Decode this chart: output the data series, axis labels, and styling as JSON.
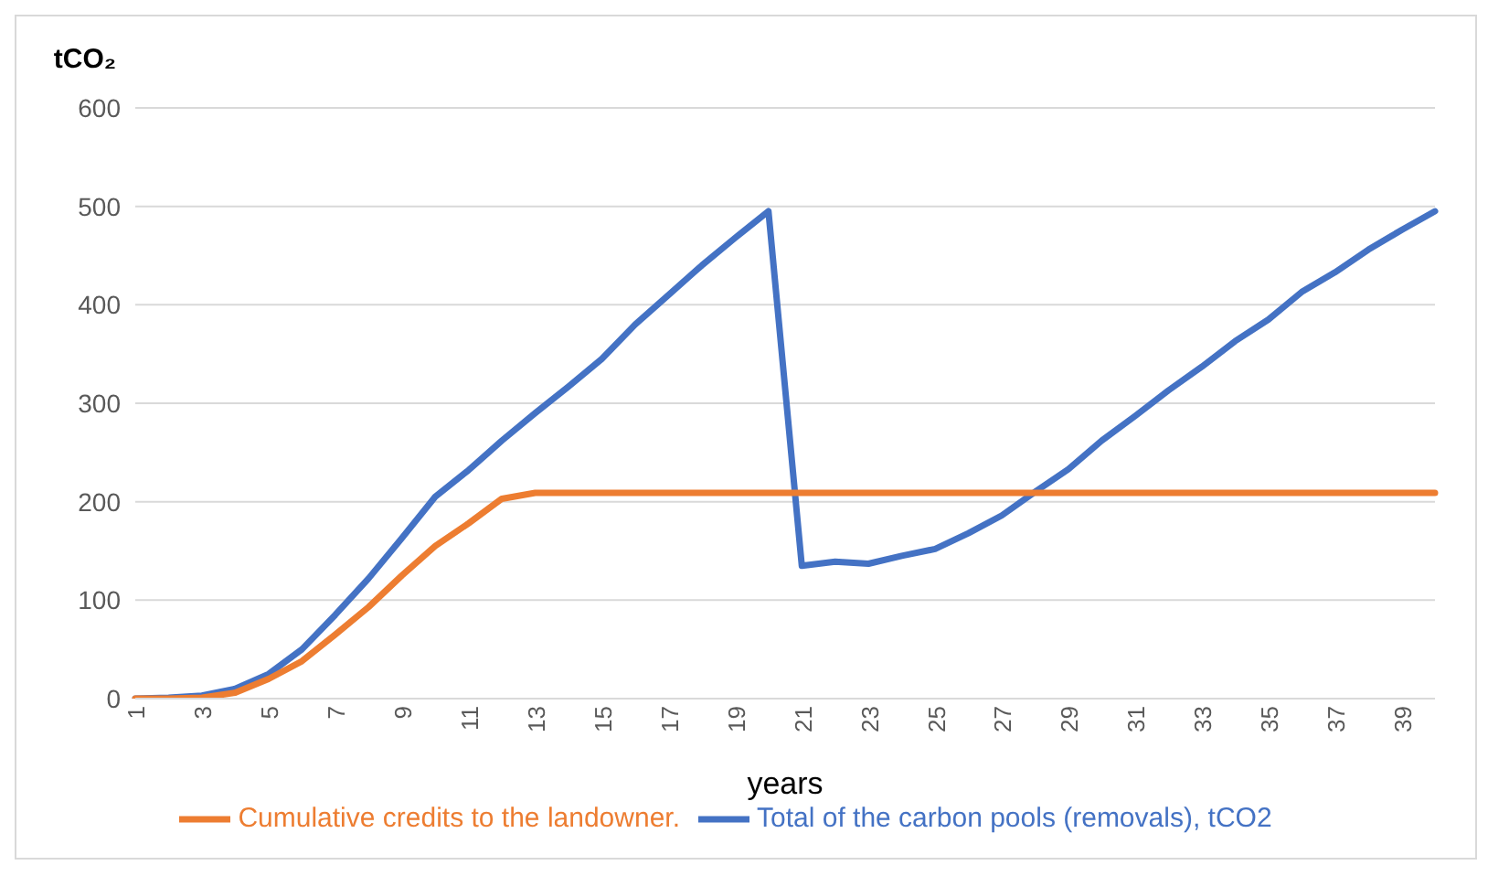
{
  "chart_data": {
    "type": "line",
    "xlabel": "years",
    "ylabel": "tCO₂",
    "categories": [
      "1",
      null,
      "3",
      null,
      "5",
      null,
      "7",
      null,
      "9",
      null,
      "11",
      null,
      "13",
      null,
      "15",
      null,
      "17",
      null,
      "19",
      null,
      "21",
      null,
      "23",
      null,
      "25",
      null,
      "27",
      null,
      "29",
      null,
      "31",
      null,
      "33",
      null,
      "35",
      null,
      "37",
      null,
      "39",
      null
    ],
    "series": [
      {
        "name": "Total of the carbon pools (removals), tCO2",
        "color": "#4472c4",
        "values": [
          0,
          1,
          3,
          10,
          25,
          50,
          85,
          122,
          163,
          205,
          232,
          262,
          290,
          317,
          345,
          380,
          410,
          440,
          468,
          495,
          135,
          139,
          137,
          145,
          152,
          168,
          186,
          210,
          233,
          262,
          287,
          313,
          337,
          363,
          385,
          413,
          433,
          456,
          476,
          495
        ]
      },
      {
        "name": "Cumulative credits to the landowner.",
        "color": "#ed7d31",
        "values": [
          0,
          0,
          1,
          6,
          20,
          38,
          65,
          93,
          125,
          155,
          178,
          203,
          209,
          209,
          209,
          209,
          209,
          209,
          209,
          209,
          209,
          209,
          209,
          209,
          209,
          209,
          209,
          209,
          209,
          209,
          209,
          209,
          209,
          209,
          209,
          209,
          209,
          209,
          209,
          209
        ]
      }
    ],
    "ylim": [
      0,
      600
    ],
    "yticks": [
      0,
      100,
      200,
      300,
      400,
      500,
      600
    ],
    "grid": "y",
    "legend": "bottom",
    "marker": "none",
    "line_style": "solid"
  }
}
